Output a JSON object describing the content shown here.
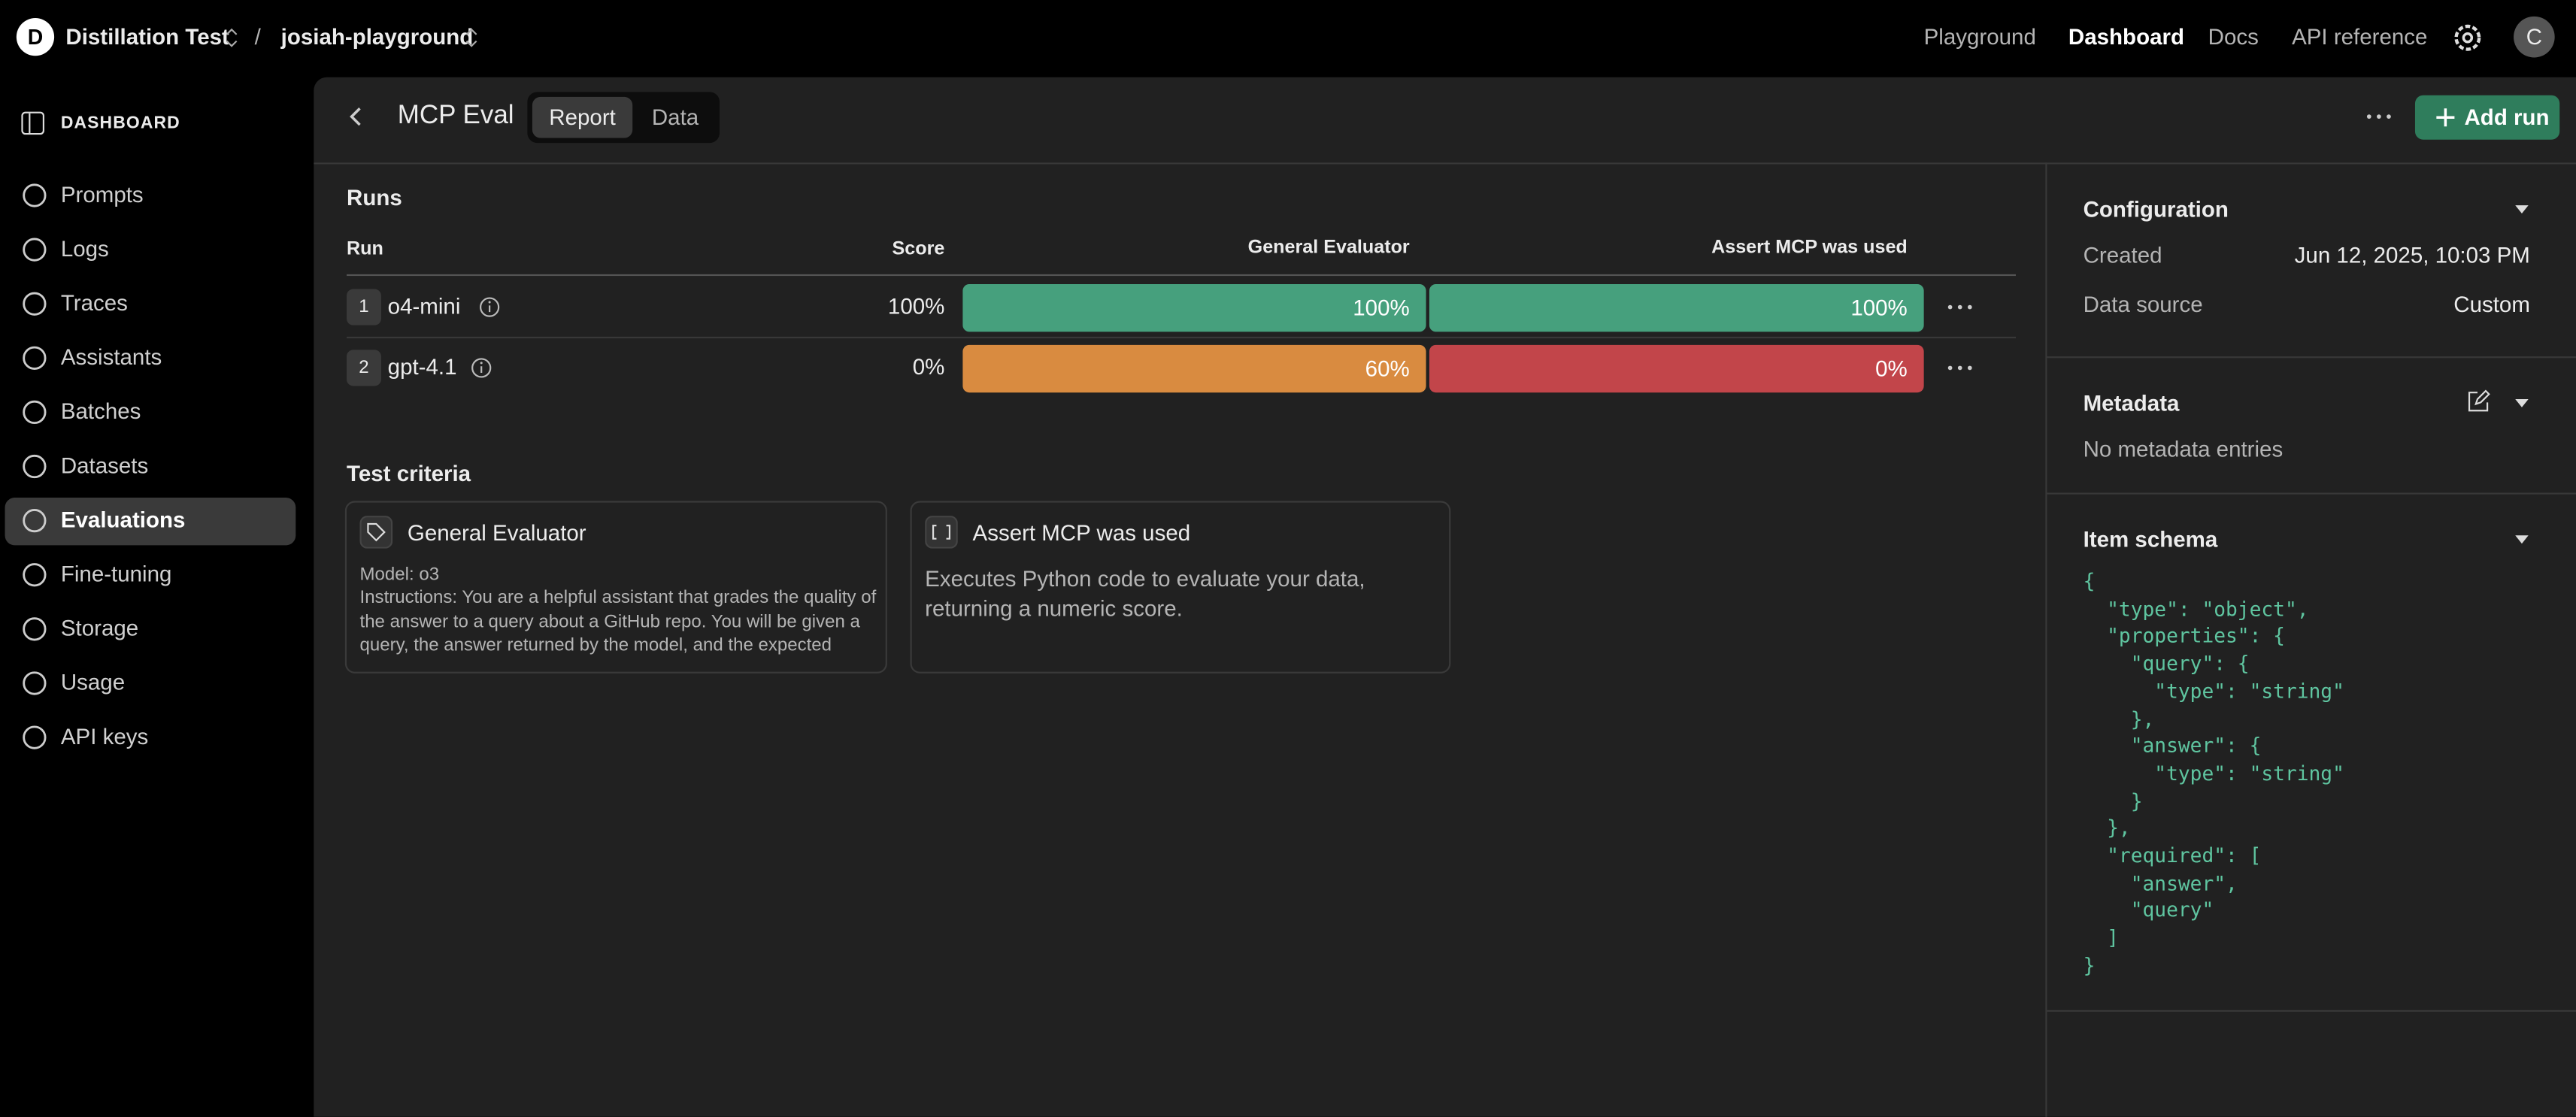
{
  "topbar": {
    "org_initial": "D",
    "org": "Distillation Test",
    "separator": "/",
    "project": "josiah-playground",
    "nav": [
      "Playground",
      "Dashboard",
      "Docs",
      "API reference"
    ],
    "avatar": "C"
  },
  "sidebar": {
    "heading": "DASHBOARD",
    "items": [
      "Prompts",
      "Logs",
      "Traces",
      "Assistants",
      "Batches",
      "Datasets",
      "Evaluations",
      "Fine-tuning",
      "Storage",
      "Usage",
      "API keys"
    ]
  },
  "header": {
    "title": "MCP Eval",
    "tabs": [
      "Report",
      "Data"
    ],
    "add_run": "Add run"
  },
  "runs": {
    "title": "Runs",
    "columns": [
      "Run",
      "Score",
      "General Evaluator",
      "Assert MCP was used"
    ],
    "rows": [
      {
        "index": 1,
        "name": "o4-mini",
        "score": "100%",
        "general": "100%",
        "general_color": "#46a07d",
        "assert": "100%",
        "assert_color": "#46a07d"
      },
      {
        "index": 2,
        "name": "gpt-4.1",
        "score": "0%",
        "general": "60%",
        "general_color": "#d98b40",
        "assert": "0%",
        "assert_color": "#c2454a"
      }
    ]
  },
  "criteria": {
    "title": "Test criteria",
    "cards": [
      {
        "name": "General Evaluator",
        "model": "Model: o3",
        "text": "Instructions: You are a helpful assistant that grades the quality of the answer to a query about a GitHub repo. You will be given a query, the answer returned by the model, and the expected"
      },
      {
        "name": "Assert MCP was used",
        "text": "Executes Python code to evaluate your data, returning a numeric score."
      }
    ]
  },
  "panel": {
    "configuration": {
      "title": "Configuration",
      "created_label": "Created",
      "created": "Jun 12, 2025, 10:03 PM",
      "source_label": "Data source",
      "source": "Custom"
    },
    "metadata": {
      "title": "Metadata",
      "empty": "No metadata entries"
    },
    "schema": {
      "title": "Item schema",
      "lines": [
        "{",
        "  \"type\": \"object\",",
        "  \"properties\": {",
        "    \"query\": {",
        "      \"type\": \"string\"",
        "    },",
        "    \"answer\": {",
        "      \"type\": \"string\"",
        "    }",
        "  },",
        "  \"required\": [",
        "    \"answer\",",
        "    \"query\"",
        "  ]",
        "}"
      ]
    }
  }
}
